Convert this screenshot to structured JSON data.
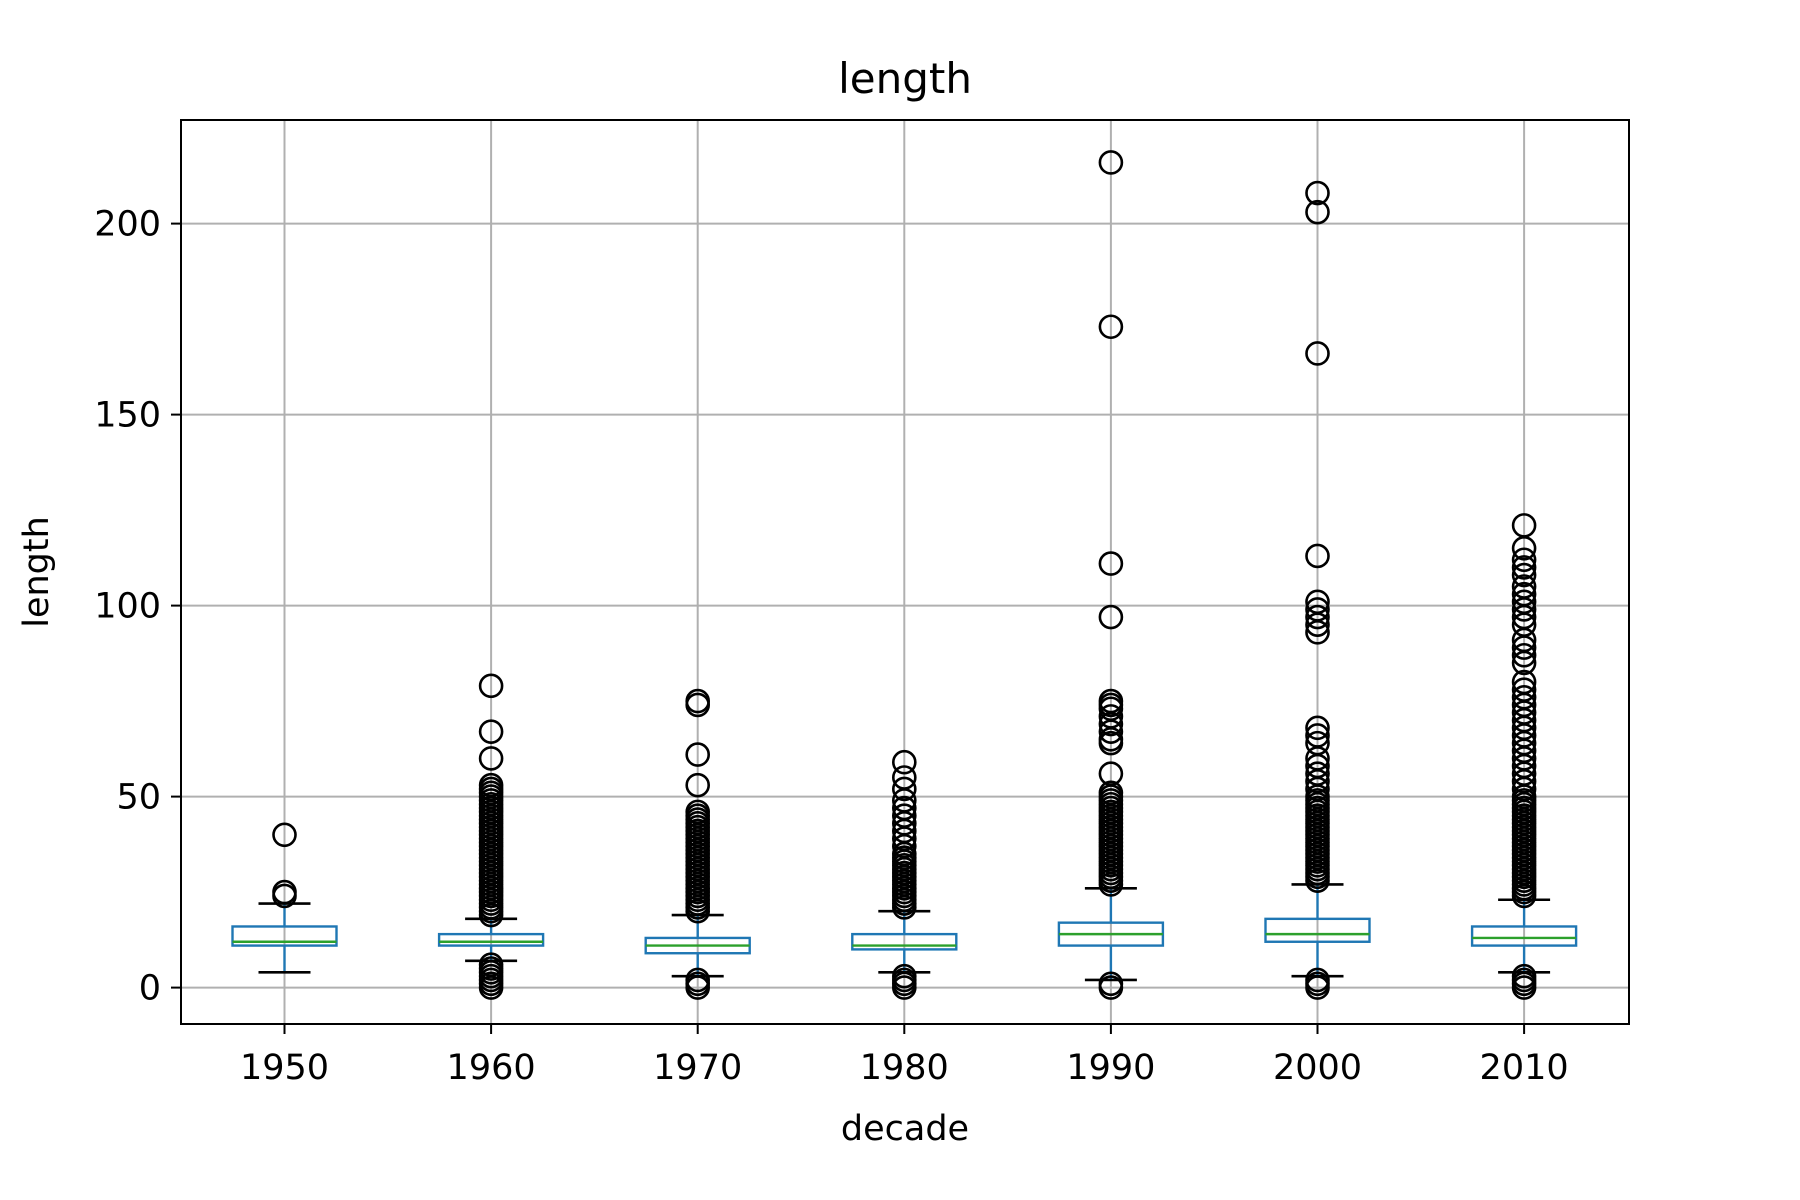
{
  "chart_data": {
    "type": "box",
    "title": "length",
    "xlabel": "decade",
    "ylabel": "length",
    "categories": [
      "1950",
      "1960",
      "1970",
      "1980",
      "1990",
      "2000",
      "2010"
    ],
    "ylim": [
      -10,
      227
    ],
    "yticks": [
      0,
      50,
      100,
      150,
      200
    ],
    "ytick_labels": [
      "0",
      "50",
      "100",
      "150",
      "200"
    ],
    "grid": true,
    "colors": {
      "box": "#1f77b4",
      "median": "#2ca02c",
      "whisker": "#1f77b4",
      "cap": "#000000",
      "flier": "#000000",
      "grid": "#b0b0b0"
    },
    "boxes": [
      {
        "category": "1950",
        "whislo": 4,
        "q1": 11,
        "med": 12,
        "q3": 16,
        "whishi": 22,
        "fliers": [
          40,
          25,
          24
        ]
      },
      {
        "category": "1960",
        "whislo": 7,
        "q1": 11,
        "med": 12,
        "q3": 14,
        "whishi": 18,
        "fliers": [
          79,
          67,
          60,
          53,
          52,
          51,
          50,
          49,
          48,
          47,
          46,
          45,
          44,
          43,
          42,
          41,
          40,
          39,
          38,
          37,
          36,
          35,
          34,
          33,
          32,
          31,
          30,
          29,
          28,
          27,
          26,
          25,
          24,
          23,
          22,
          21,
          20,
          19,
          6,
          5,
          4,
          3,
          2,
          1,
          0
        ]
      },
      {
        "category": "1970",
        "whislo": 3,
        "q1": 9,
        "med": 11,
        "q3": 13,
        "whishi": 19,
        "fliers": [
          75,
          74,
          61,
          53,
          46,
          45,
          44,
          43,
          42,
          41,
          40,
          39,
          38,
          37,
          36,
          35,
          34,
          33,
          32,
          31,
          30,
          29,
          28,
          27,
          26,
          25,
          24,
          23,
          22,
          21,
          20,
          2,
          1,
          0
        ]
      },
      {
        "category": "1980",
        "whislo": 4,
        "q1": 10,
        "med": 11,
        "q3": 14,
        "whishi": 20,
        "fliers": [
          59,
          55,
          52,
          49,
          47,
          45,
          43,
          41,
          39,
          37,
          35,
          34,
          33,
          32,
          31,
          30,
          29,
          28,
          27,
          26,
          25,
          24,
          23,
          22,
          21,
          3,
          2,
          1,
          0
        ]
      },
      {
        "category": "1990",
        "whislo": 2,
        "q1": 11,
        "med": 14,
        "q3": 17,
        "whishi": 26,
        "fliers": [
          216,
          173,
          111,
          97,
          75,
          74,
          73,
          71,
          69,
          67,
          65,
          64,
          56,
          51,
          50,
          49,
          48,
          47,
          46,
          45,
          44,
          43,
          42,
          41,
          40,
          39,
          38,
          37,
          36,
          35,
          34,
          33,
          32,
          31,
          30,
          29,
          28,
          27,
          1,
          0
        ]
      },
      {
        "category": "2000",
        "whislo": 3,
        "q1": 12,
        "med": 14,
        "q3": 18,
        "whishi": 27,
        "fliers": [
          208,
          203,
          166,
          113,
          101,
          99,
          97,
          95,
          93,
          68,
          66,
          64,
          60,
          58,
          56,
          54,
          52,
          50,
          49,
          48,
          47,
          46,
          45,
          44,
          43,
          42,
          41,
          40,
          39,
          38,
          37,
          36,
          35,
          34,
          33,
          32,
          31,
          30,
          29,
          28,
          2,
          1,
          0
        ]
      },
      {
        "category": "2010",
        "whislo": 4,
        "q1": 11,
        "med": 13,
        "q3": 16,
        "whishi": 23,
        "fliers": [
          121,
          115,
          112,
          110,
          108,
          105,
          103,
          101,
          99,
          97,
          95,
          91,
          89,
          87,
          85,
          80,
          78,
          76,
          74,
          72,
          70,
          68,
          66,
          64,
          62,
          60,
          58,
          56,
          54,
          52,
          50,
          49,
          48,
          47,
          46,
          45,
          44,
          43,
          42,
          41,
          40,
          39,
          38,
          37,
          36,
          35,
          34,
          33,
          32,
          31,
          30,
          29,
          28,
          27,
          26,
          25,
          24,
          3,
          2,
          1,
          0
        ]
      }
    ]
  }
}
